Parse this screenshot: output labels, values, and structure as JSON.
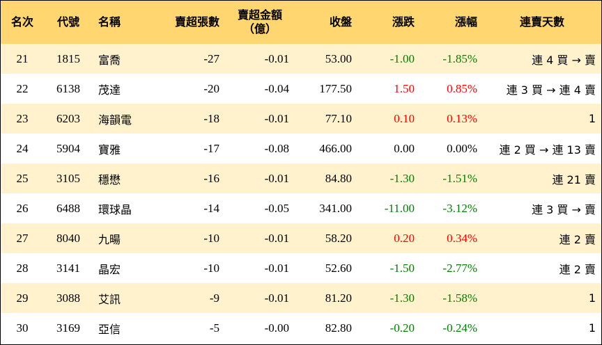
{
  "headers": {
    "rank": "名次",
    "code": "代號",
    "name": "名稱",
    "net_sell_lots": "賣超張數",
    "net_sell_amount_line1": "賣超金額",
    "net_sell_amount_line2": "（億）",
    "close": "收盤",
    "change": "漲跌",
    "change_pct": "漲幅",
    "streak": "連賣天數"
  },
  "colors": {
    "header_bg": "#ffd670",
    "row_alt_bg": "#fff2cc",
    "up": "#ff0000",
    "down": "#008000"
  },
  "rows": [
    {
      "rank": "21",
      "code": "1815",
      "name": "富喬",
      "lots": "-27",
      "amount": "-0.01",
      "close": "53.00",
      "change": "-1.00",
      "pct": "-1.85%",
      "streak": "連 4 買 → 賣",
      "dir": "down"
    },
    {
      "rank": "22",
      "code": "6138",
      "name": "茂達",
      "lots": "-20",
      "amount": "-0.04",
      "close": "177.50",
      "change": "1.50",
      "pct": "0.85%",
      "streak": "連 3 買 → 連 4 賣",
      "dir": "up"
    },
    {
      "rank": "23",
      "code": "6203",
      "name": "海韻電",
      "lots": "-18",
      "amount": "-0.01",
      "close": "77.10",
      "change": "0.10",
      "pct": "0.13%",
      "streak": "1",
      "dir": "up"
    },
    {
      "rank": "24",
      "code": "5904",
      "name": "寶雅",
      "lots": "-17",
      "amount": "-0.08",
      "close": "466.00",
      "change": "0.00",
      "pct": "0.00%",
      "streak": "連 2 買 → 連 13 賣",
      "dir": "flat"
    },
    {
      "rank": "25",
      "code": "3105",
      "name": "穩懋",
      "lots": "-16",
      "amount": "-0.01",
      "close": "84.80",
      "change": "-1.30",
      "pct": "-1.51%",
      "streak": "連 21 賣",
      "dir": "down"
    },
    {
      "rank": "26",
      "code": "6488",
      "name": "環球晶",
      "lots": "-14",
      "amount": "-0.05",
      "close": "341.00",
      "change": "-11.00",
      "pct": "-3.12%",
      "streak": "連 3 買 → 賣",
      "dir": "down"
    },
    {
      "rank": "27",
      "code": "8040",
      "name": "九暘",
      "lots": "-10",
      "amount": "-0.01",
      "close": "58.20",
      "change": "0.20",
      "pct": "0.34%",
      "streak": "連 2 賣",
      "dir": "up"
    },
    {
      "rank": "28",
      "code": "3141",
      "name": "晶宏",
      "lots": "-10",
      "amount": "-0.01",
      "close": "52.60",
      "change": "-1.50",
      "pct": "-2.77%",
      "streak": "連 2 賣",
      "dir": "down"
    },
    {
      "rank": "29",
      "code": "3088",
      "name": "艾訊",
      "lots": "-9",
      "amount": "-0.01",
      "close": "81.20",
      "change": "-1.30",
      "pct": "-1.58%",
      "streak": "1",
      "dir": "down"
    },
    {
      "rank": "30",
      "code": "3169",
      "name": "亞信",
      "lots": "-5",
      "amount": "-0.00",
      "close": "82.80",
      "change": "-0.20",
      "pct": "-0.24%",
      "streak": "1",
      "dir": "down"
    }
  ]
}
